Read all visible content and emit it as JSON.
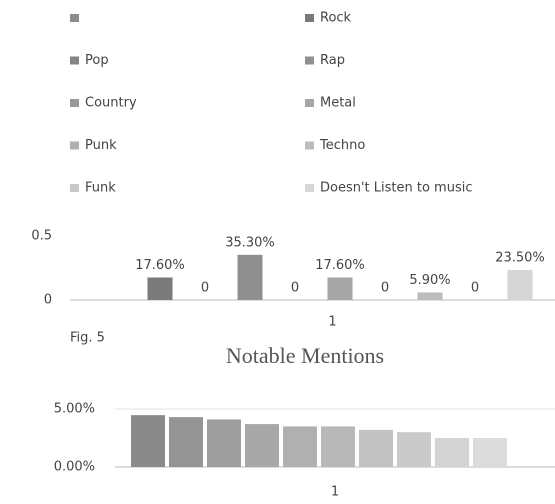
{
  "chart_data": [
    {
      "type": "bar",
      "categories": [
        "1"
      ],
      "annotation": "Fig. 5",
      "ylim": [
        0,
        0.5
      ],
      "yticks": [
        0,
        0.5
      ],
      "grid": false,
      "series": [
        {
          "name": null,
          "color": "#8c8c8c",
          "values": [
            null
          ]
        },
        {
          "name": "Rock",
          "color": "#7a7a7a",
          "values": [
            0.176
          ],
          "value_labels": [
            "17.60%"
          ]
        },
        {
          "name": "Pop",
          "color": "#858585",
          "values": [
            0
          ]
        },
        {
          "name": "Rap",
          "color": "#8f8f8f",
          "values": [
            0.353
          ],
          "value_labels": [
            "35.30%"
          ]
        },
        {
          "name": "Country",
          "color": "#9a9a9a",
          "values": [
            0
          ]
        },
        {
          "name": "Metal",
          "color": "#a6a6a6",
          "values": [
            0.176
          ],
          "value_labels": [
            "17.60%"
          ]
        },
        {
          "name": "Punk",
          "color": "#b0b0b0",
          "values": [
            0
          ]
        },
        {
          "name": "Techno",
          "color": "#bcbcbc",
          "values": [
            0.059
          ],
          "value_labels": [
            "5.90%"
          ]
        },
        {
          "name": "Funk",
          "color": "#c8c8c8",
          "values": [
            0
          ]
        },
        {
          "name": "Doesn't Listen to music",
          "color": "#d6d6d6",
          "values": [
            0.235
          ],
          "value_labels": [
            "23.50%"
          ]
        }
      ]
    },
    {
      "type": "bar",
      "title": "Notable Mentions",
      "categories": [
        "1"
      ],
      "ylim": [
        0,
        0.05
      ],
      "yticks": [
        {
          "value": 0,
          "label": "0.00%"
        },
        {
          "value": 0.05,
          "label": "5.00%"
        }
      ],
      "grid": true,
      "series": [
        {
          "name": null,
          "color": "#8a8a8a",
          "values": [
            0.0447
          ]
        },
        {
          "name": null,
          "color": "#949494",
          "values": [
            0.043
          ]
        },
        {
          "name": null,
          "color": "#9e9e9e",
          "values": [
            0.041
          ]
        },
        {
          "name": null,
          "color": "#a8a8a8",
          "values": [
            0.037
          ]
        },
        {
          "name": null,
          "color": "#b0b0b0",
          "values": [
            0.035
          ]
        },
        {
          "name": null,
          "color": "#b8b8b8",
          "values": [
            0.035
          ]
        },
        {
          "name": null,
          "color": "#c2c2c2",
          "values": [
            0.032
          ]
        },
        {
          "name": null,
          "color": "#cacaca",
          "values": [
            0.03
          ]
        },
        {
          "name": null,
          "color": "#d4d4d4",
          "values": [
            0.025
          ]
        },
        {
          "name": null,
          "color": "#dcdcdc",
          "values": [
            0.025
          ]
        }
      ]
    }
  ]
}
